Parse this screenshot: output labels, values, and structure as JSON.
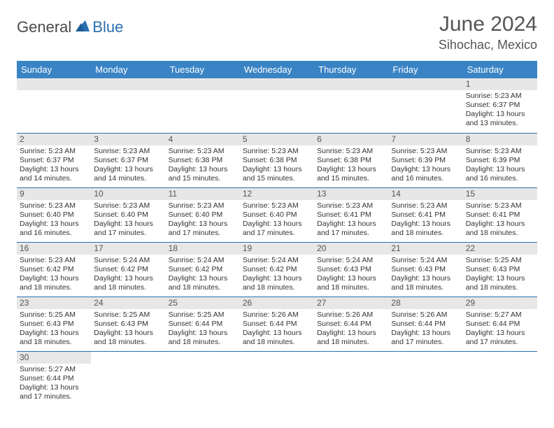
{
  "logo": {
    "general": "General",
    "blue": "Blue"
  },
  "title": "June 2024",
  "location": "Sihochac, Mexico",
  "colors": {
    "header_bg": "#3a84c5",
    "header_text": "#ffffff",
    "cell_border": "#2b6fb0",
    "daynum_bg": "#e7e7e7",
    "text": "#333333",
    "muted": "#555555",
    "logo_blue": "#2b6fb0"
  },
  "day_headers": [
    "Sunday",
    "Monday",
    "Tuesday",
    "Wednesday",
    "Thursday",
    "Friday",
    "Saturday"
  ],
  "weeks": [
    [
      {
        "n": "",
        "sunrise": "",
        "sunset": "",
        "daylight": ""
      },
      {
        "n": "",
        "sunrise": "",
        "sunset": "",
        "daylight": ""
      },
      {
        "n": "",
        "sunrise": "",
        "sunset": "",
        "daylight": ""
      },
      {
        "n": "",
        "sunrise": "",
        "sunset": "",
        "daylight": ""
      },
      {
        "n": "",
        "sunrise": "",
        "sunset": "",
        "daylight": ""
      },
      {
        "n": "",
        "sunrise": "",
        "sunset": "",
        "daylight": ""
      },
      {
        "n": "1",
        "sunrise": "Sunrise: 5:23 AM",
        "sunset": "Sunset: 6:37 PM",
        "daylight": "Daylight: 13 hours and 13 minutes."
      }
    ],
    [
      {
        "n": "2",
        "sunrise": "Sunrise: 5:23 AM",
        "sunset": "Sunset: 6:37 PM",
        "daylight": "Daylight: 13 hours and 14 minutes."
      },
      {
        "n": "3",
        "sunrise": "Sunrise: 5:23 AM",
        "sunset": "Sunset: 6:37 PM",
        "daylight": "Daylight: 13 hours and 14 minutes."
      },
      {
        "n": "4",
        "sunrise": "Sunrise: 5:23 AM",
        "sunset": "Sunset: 6:38 PM",
        "daylight": "Daylight: 13 hours and 15 minutes."
      },
      {
        "n": "5",
        "sunrise": "Sunrise: 5:23 AM",
        "sunset": "Sunset: 6:38 PM",
        "daylight": "Daylight: 13 hours and 15 minutes."
      },
      {
        "n": "6",
        "sunrise": "Sunrise: 5:23 AM",
        "sunset": "Sunset: 6:38 PM",
        "daylight": "Daylight: 13 hours and 15 minutes."
      },
      {
        "n": "7",
        "sunrise": "Sunrise: 5:23 AM",
        "sunset": "Sunset: 6:39 PM",
        "daylight": "Daylight: 13 hours and 16 minutes."
      },
      {
        "n": "8",
        "sunrise": "Sunrise: 5:23 AM",
        "sunset": "Sunset: 6:39 PM",
        "daylight": "Daylight: 13 hours and 16 minutes."
      }
    ],
    [
      {
        "n": "9",
        "sunrise": "Sunrise: 5:23 AM",
        "sunset": "Sunset: 6:40 PM",
        "daylight": "Daylight: 13 hours and 16 minutes."
      },
      {
        "n": "10",
        "sunrise": "Sunrise: 5:23 AM",
        "sunset": "Sunset: 6:40 PM",
        "daylight": "Daylight: 13 hours and 17 minutes."
      },
      {
        "n": "11",
        "sunrise": "Sunrise: 5:23 AM",
        "sunset": "Sunset: 6:40 PM",
        "daylight": "Daylight: 13 hours and 17 minutes."
      },
      {
        "n": "12",
        "sunrise": "Sunrise: 5:23 AM",
        "sunset": "Sunset: 6:40 PM",
        "daylight": "Daylight: 13 hours and 17 minutes."
      },
      {
        "n": "13",
        "sunrise": "Sunrise: 5:23 AM",
        "sunset": "Sunset: 6:41 PM",
        "daylight": "Daylight: 13 hours and 17 minutes."
      },
      {
        "n": "14",
        "sunrise": "Sunrise: 5:23 AM",
        "sunset": "Sunset: 6:41 PM",
        "daylight": "Daylight: 13 hours and 18 minutes."
      },
      {
        "n": "15",
        "sunrise": "Sunrise: 5:23 AM",
        "sunset": "Sunset: 6:41 PM",
        "daylight": "Daylight: 13 hours and 18 minutes."
      }
    ],
    [
      {
        "n": "16",
        "sunrise": "Sunrise: 5:23 AM",
        "sunset": "Sunset: 6:42 PM",
        "daylight": "Daylight: 13 hours and 18 minutes."
      },
      {
        "n": "17",
        "sunrise": "Sunrise: 5:24 AM",
        "sunset": "Sunset: 6:42 PM",
        "daylight": "Daylight: 13 hours and 18 minutes."
      },
      {
        "n": "18",
        "sunrise": "Sunrise: 5:24 AM",
        "sunset": "Sunset: 6:42 PM",
        "daylight": "Daylight: 13 hours and 18 minutes."
      },
      {
        "n": "19",
        "sunrise": "Sunrise: 5:24 AM",
        "sunset": "Sunset: 6:42 PM",
        "daylight": "Daylight: 13 hours and 18 minutes."
      },
      {
        "n": "20",
        "sunrise": "Sunrise: 5:24 AM",
        "sunset": "Sunset: 6:43 PM",
        "daylight": "Daylight: 13 hours and 18 minutes."
      },
      {
        "n": "21",
        "sunrise": "Sunrise: 5:24 AM",
        "sunset": "Sunset: 6:43 PM",
        "daylight": "Daylight: 13 hours and 18 minutes."
      },
      {
        "n": "22",
        "sunrise": "Sunrise: 5:25 AM",
        "sunset": "Sunset: 6:43 PM",
        "daylight": "Daylight: 13 hours and 18 minutes."
      }
    ],
    [
      {
        "n": "23",
        "sunrise": "Sunrise: 5:25 AM",
        "sunset": "Sunset: 6:43 PM",
        "daylight": "Daylight: 13 hours and 18 minutes."
      },
      {
        "n": "24",
        "sunrise": "Sunrise: 5:25 AM",
        "sunset": "Sunset: 6:43 PM",
        "daylight": "Daylight: 13 hours and 18 minutes."
      },
      {
        "n": "25",
        "sunrise": "Sunrise: 5:25 AM",
        "sunset": "Sunset: 6:44 PM",
        "daylight": "Daylight: 13 hours and 18 minutes."
      },
      {
        "n": "26",
        "sunrise": "Sunrise: 5:26 AM",
        "sunset": "Sunset: 6:44 PM",
        "daylight": "Daylight: 13 hours and 18 minutes."
      },
      {
        "n": "27",
        "sunrise": "Sunrise: 5:26 AM",
        "sunset": "Sunset: 6:44 PM",
        "daylight": "Daylight: 13 hours and 18 minutes."
      },
      {
        "n": "28",
        "sunrise": "Sunrise: 5:26 AM",
        "sunset": "Sunset: 6:44 PM",
        "daylight": "Daylight: 13 hours and 17 minutes."
      },
      {
        "n": "29",
        "sunrise": "Sunrise: 5:27 AM",
        "sunset": "Sunset: 6:44 PM",
        "daylight": "Daylight: 13 hours and 17 minutes."
      }
    ],
    [
      {
        "n": "30",
        "sunrise": "Sunrise: 5:27 AM",
        "sunset": "Sunset: 6:44 PM",
        "daylight": "Daylight: 13 hours and 17 minutes."
      },
      {
        "n": "",
        "sunrise": "",
        "sunset": "",
        "daylight": ""
      },
      {
        "n": "",
        "sunrise": "",
        "sunset": "",
        "daylight": ""
      },
      {
        "n": "",
        "sunrise": "",
        "sunset": "",
        "daylight": ""
      },
      {
        "n": "",
        "sunrise": "",
        "sunset": "",
        "daylight": ""
      },
      {
        "n": "",
        "sunrise": "",
        "sunset": "",
        "daylight": ""
      },
      {
        "n": "",
        "sunrise": "",
        "sunset": "",
        "daylight": ""
      }
    ]
  ]
}
